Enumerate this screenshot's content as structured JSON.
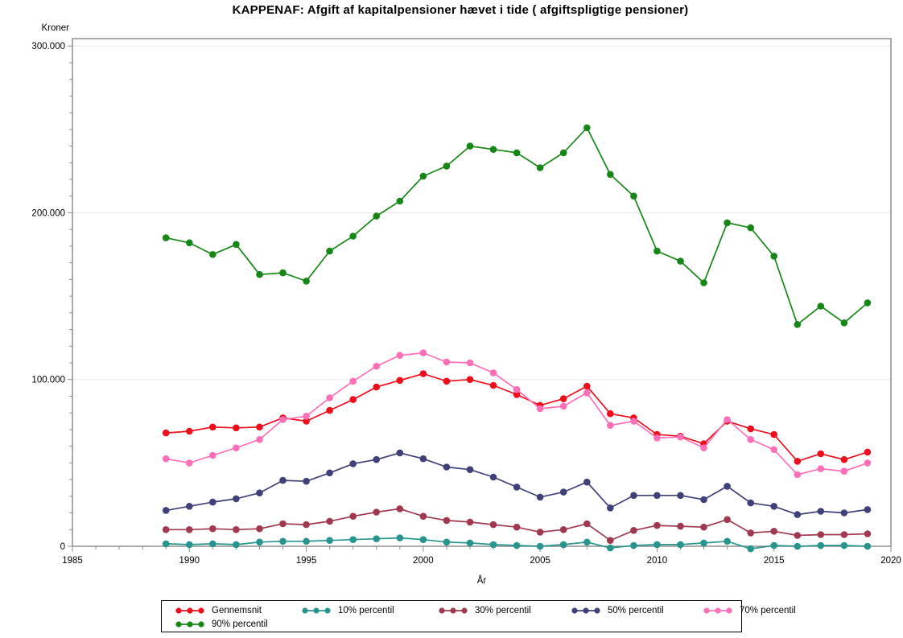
{
  "title": "KAPPENAF: Afgift af kapitalpensioner hævet i tide ( afgiftspligtige pensioner)",
  "chart_data": {
    "type": "line",
    "title": "KAPPENAF: Afgift af kapitalpensioner hævet i tide ( afgiftspligtige pensioner)",
    "xlabel": "År",
    "ylabel": "Kroner",
    "x_axis": {
      "min": 1985,
      "max": 2020,
      "major_ticks": [
        1985,
        1990,
        1995,
        2000,
        2005,
        2010,
        2015,
        2020
      ],
      "major_tick_labels": [
        "1985",
        "1990",
        "1995",
        "2000",
        "2005",
        "2010",
        "2015",
        "2020"
      ],
      "minor_tick_every": 1
    },
    "y_axis": {
      "min": 0,
      "max": 300000,
      "major_ticks": [
        0,
        100000,
        200000,
        300000
      ],
      "major_tick_labels": [
        "0",
        "100.000",
        "200.000",
        "300.000"
      ],
      "minor_tick_every": 10000,
      "grid": true
    },
    "legend_position": "bottom",
    "x": [
      1989,
      1990,
      1991,
      1992,
      1993,
      1994,
      1995,
      1996,
      1997,
      1998,
      1999,
      2000,
      2001,
      2002,
      2003,
      2004,
      2005,
      2006,
      2007,
      2008,
      2009,
      2010,
      2011,
      2012,
      2013,
      2014,
      2015,
      2016,
      2017,
      2018,
      2019
    ],
    "series": [
      {
        "name": "Gennemsnit",
        "color": "#ED0E1C",
        "values": [
          68000,
          69000,
          71500,
          71000,
          71500,
          77000,
          75000,
          81500,
          88000,
          95500,
          99500,
          103500,
          99000,
          100000,
          96500,
          91000,
          84500,
          88500,
          96000,
          79500,
          77000,
          67000,
          66000,
          61500,
          75000,
          70500,
          67000,
          51000,
          55500,
          52000,
          56500
        ]
      },
      {
        "name": "10% percentil",
        "color": "#27958D",
        "values": [
          1500,
          1000,
          1500,
          1000,
          2500,
          3000,
          3000,
          3500,
          4000,
          4500,
          5000,
          4000,
          2500,
          2000,
          1000,
          500,
          0,
          1000,
          2500,
          -1000,
          500,
          1000,
          1000,
          2000,
          3000,
          -1500,
          500,
          0,
          500,
          500,
          0
        ]
      },
      {
        "name": "30% percentil",
        "color": "#A03950",
        "values": [
          10000,
          10000,
          10500,
          10000,
          10500,
          13500,
          13000,
          15000,
          18000,
          20500,
          22500,
          18000,
          15500,
          14500,
          13000,
          11500,
          8500,
          10000,
          13500,
          3500,
          9500,
          12500,
          12000,
          11500,
          16000,
          8000,
          9000,
          6500,
          7000,
          7000,
          7500
        ]
      },
      {
        "name": "50% percentil",
        "color": "#3F3F7A",
        "values": [
          21500,
          24000,
          26500,
          28500,
          32000,
          39500,
          39000,
          44000,
          49500,
          52000,
          56000,
          52500,
          47500,
          46000,
          41500,
          35500,
          29500,
          32500,
          38500,
          23000,
          30500,
          30500,
          30500,
          28000,
          36000,
          26000,
          24000,
          19000,
          21000,
          20000,
          22000
        ]
      },
      {
        "name": "70% percentil",
        "color": "#FF6FB7",
        "values": [
          52500,
          50000,
          54500,
          59000,
          64000,
          76000,
          78000,
          89000,
          99000,
          108000,
          114500,
          116000,
          110500,
          110000,
          104000,
          94000,
          82500,
          84000,
          92000,
          72500,
          75000,
          65000,
          65500,
          59000,
          76000,
          64000,
          58000,
          43000,
          46500,
          45000,
          50000
        ]
      },
      {
        "name": "90% percentil",
        "color": "#168716",
        "values": [
          185000,
          182000,
          175000,
          181000,
          163000,
          164000,
          159000,
          177000,
          186000,
          198000,
          207000,
          222000,
          228000,
          240000,
          238000,
          236000,
          227000,
          236000,
          251000,
          223000,
          210000,
          177000,
          171000,
          158000,
          194000,
          191000,
          174000,
          133000,
          144000,
          134000,
          146000
        ]
      }
    ]
  },
  "colors": {
    "background": "#FFFFFF",
    "frame": "#8E8E8E",
    "grid": "#E8E8E8",
    "tick": "#8E8E8E",
    "text": "#000000"
  },
  "legend": {
    "entries": [
      "Gennemsnit",
      "10% percentil",
      "30% percentil",
      "50% percentil",
      "70% percentil",
      "90% percentil"
    ]
  }
}
